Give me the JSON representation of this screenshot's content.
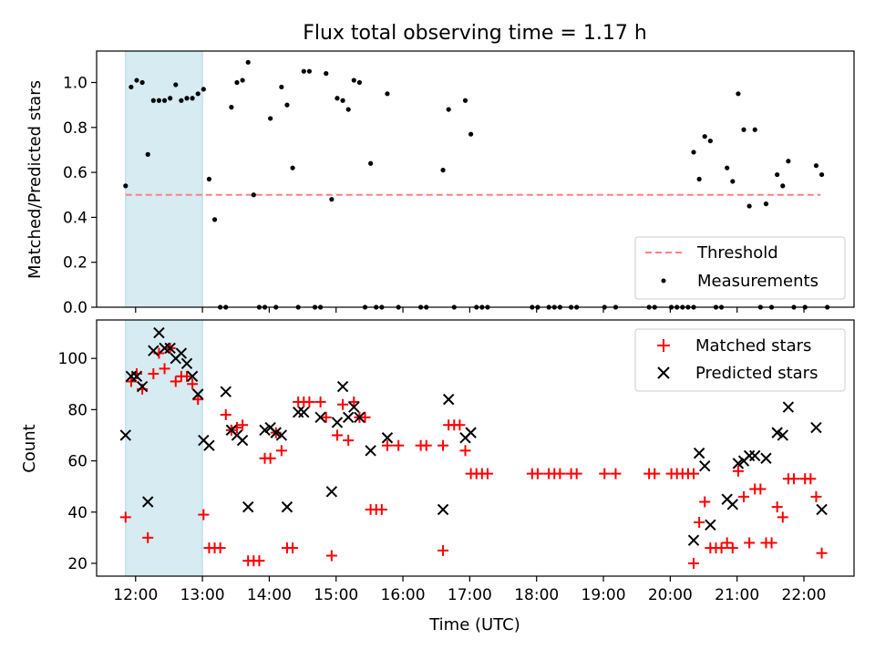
{
  "chart_data": [
    {
      "type": "scatter",
      "title": "Flux total observing time = 1.17 h",
      "ylabel": "Matched/Predicted stars",
      "ylim": [
        0,
        1.14
      ],
      "xlim": [
        "11:25",
        "22:45"
      ],
      "yticks": [
        "0.0",
        "0.2",
        "0.4",
        "0.6",
        "0.8",
        "1.0"
      ],
      "shaded_span": [
        "11:51",
        "13:00"
      ],
      "shade_color": "#add8e6",
      "threshold": {
        "name": "Threshold",
        "value": 0.5,
        "x_range": [
          "11:51",
          "22:15"
        ],
        "color": "#ff8080"
      },
      "legend": {
        "placement": "lower-right",
        "entries": [
          "Threshold",
          "Measurements"
        ]
      },
      "series": [
        {
          "name": "Measurements",
          "color": "#000000",
          "points": [
            [
              "11:51",
              0.54
            ],
            [
              "11:56",
              0.98
            ],
            [
              "12:01",
              1.01
            ],
            [
              "12:06",
              1.0
            ],
            [
              "12:11",
              0.68
            ],
            [
              "12:16",
              0.92
            ],
            [
              "12:21",
              0.92
            ],
            [
              "12:26",
              0.92
            ],
            [
              "12:31",
              0.93
            ],
            [
              "12:36",
              0.99
            ],
            [
              "12:41",
              0.92
            ],
            [
              "12:46",
              0.93
            ],
            [
              "12:51",
              0.93
            ],
            [
              "12:56",
              0.95
            ],
            [
              "13:01",
              0.97
            ],
            [
              "13:06",
              0.57
            ],
            [
              "13:11",
              0.39
            ],
            [
              "13:16",
              0.0
            ],
            [
              "13:21",
              0.0
            ],
            [
              "13:26",
              0.89
            ],
            [
              "13:31",
              1.0
            ],
            [
              "13:36",
              1.01
            ],
            [
              "13:41",
              1.09
            ],
            [
              "13:46",
              0.5
            ],
            [
              "13:51",
              0.0
            ],
            [
              "13:56",
              0.0
            ],
            [
              "14:01",
              0.84
            ],
            [
              "14:06",
              0.0
            ],
            [
              "14:11",
              0.98
            ],
            [
              "14:16",
              0.9
            ],
            [
              "14:21",
              0.62
            ],
            [
              "14:26",
              0.0
            ],
            [
              "14:31",
              1.05
            ],
            [
              "14:36",
              1.05
            ],
            [
              "14:41",
              0.0
            ],
            [
              "14:46",
              0.0
            ],
            [
              "14:51",
              1.04
            ],
            [
              "14:56",
              0.48
            ],
            [
              "15:01",
              0.93
            ],
            [
              "15:06",
              0.92
            ],
            [
              "15:11",
              0.88
            ],
            [
              "15:16",
              1.01
            ],
            [
              "15:21",
              1.0
            ],
            [
              "15:26",
              0.0
            ],
            [
              "15:31",
              0.64
            ],
            [
              "15:36",
              0.0
            ],
            [
              "15:41",
              0.0
            ],
            [
              "15:46",
              0.95
            ],
            [
              "15:56",
              0.0
            ],
            [
              "16:16",
              0.0
            ],
            [
              "16:21",
              0.0
            ],
            [
              "16:36",
              0.61
            ],
            [
              "16:41",
              0.88
            ],
            [
              "16:46",
              0.0
            ],
            [
              "16:56",
              0.92
            ],
            [
              "17:01",
              0.77
            ],
            [
              "17:06",
              0.0
            ],
            [
              "17:11",
              0.0
            ],
            [
              "17:16",
              0.0
            ],
            [
              "17:56",
              0.0
            ],
            [
              "18:01",
              0.0
            ],
            [
              "18:11",
              0.0
            ],
            [
              "18:16",
              0.0
            ],
            [
              "18:21",
              0.0
            ],
            [
              "18:31",
              0.0
            ],
            [
              "18:36",
              0.0
            ],
            [
              "19:01",
              0.0
            ],
            [
              "19:11",
              0.0
            ],
            [
              "19:41",
              0.0
            ],
            [
              "19:46",
              0.0
            ],
            [
              "20:01",
              0.0
            ],
            [
              "20:06",
              0.0
            ],
            [
              "20:11",
              0.0
            ],
            [
              "20:16",
              0.0
            ],
            [
              "20:21",
              0.0
            ],
            [
              "20:21",
              0.69
            ],
            [
              "20:26",
              0.57
            ],
            [
              "20:31",
              0.76
            ],
            [
              "20:36",
              0.74
            ],
            [
              "20:41",
              0.0
            ],
            [
              "20:46",
              0.0
            ],
            [
              "20:51",
              0.62
            ],
            [
              "20:56",
              0.56
            ],
            [
              "21:01",
              0.95
            ],
            [
              "21:06",
              0.79
            ],
            [
              "21:11",
              0.45
            ],
            [
              "21:16",
              0.79
            ],
            [
              "21:21",
              0.0
            ],
            [
              "21:26",
              0.46
            ],
            [
              "21:31",
              0.0
            ],
            [
              "21:36",
              0.59
            ],
            [
              "21:41",
              0.54
            ],
            [
              "21:46",
              0.65
            ],
            [
              "21:51",
              0.0
            ],
            [
              "22:01",
              0.0
            ],
            [
              "22:11",
              0.63
            ],
            [
              "22:16",
              0.59
            ],
            [
              "22:21",
              0.0
            ]
          ]
        }
      ]
    },
    {
      "type": "scatter",
      "xlabel": "Time (UTC)",
      "ylabel": "Count",
      "ylim": [
        15,
        115
      ],
      "xlim": [
        "11:25",
        "22:45"
      ],
      "xticks": [
        "12:00",
        "13:00",
        "14:00",
        "15:00",
        "16:00",
        "17:00",
        "18:00",
        "19:00",
        "20:00",
        "21:00",
        "22:00"
      ],
      "yticks": [
        "20",
        "40",
        "60",
        "80",
        "100"
      ],
      "shaded_span": [
        "11:51",
        "13:00"
      ],
      "legend": {
        "placement": "top-right",
        "entries": [
          "Matched stars",
          "Predicted stars"
        ]
      },
      "series": [
        {
          "name": "Matched stars",
          "marker": "+",
          "color": "#ff0000",
          "points": [
            [
              "11:51",
              38
            ],
            [
              "11:56",
              91
            ],
            [
              "12:01",
              94
            ],
            [
              "12:06",
              88
            ],
            [
              "12:11",
              30
            ],
            [
              "12:16",
              94
            ],
            [
              "12:21",
              102
            ],
            [
              "12:26",
              96
            ],
            [
              "12:31",
              104
            ],
            [
              "12:36",
              91
            ],
            [
              "12:41",
              93
            ],
            [
              "12:46",
              93
            ],
            [
              "12:51",
              90
            ],
            [
              "12:56",
              84
            ],
            [
              "13:01",
              39
            ],
            [
              "13:06",
              26
            ],
            [
              "13:11",
              26
            ],
            [
              "13:16",
              26
            ],
            [
              "13:21",
              78
            ],
            [
              "13:26",
              72
            ],
            [
              "13:31",
              73
            ],
            [
              "13:36",
              74
            ],
            [
              "13:41",
              21
            ],
            [
              "13:46",
              21
            ],
            [
              "13:51",
              21
            ],
            [
              "13:56",
              61
            ],
            [
              "14:01",
              61
            ],
            [
              "14:06",
              71
            ],
            [
              "14:11",
              64
            ],
            [
              "14:16",
              26
            ],
            [
              "14:21",
              26
            ],
            [
              "14:26",
              83
            ],
            [
              "14:31",
              83
            ],
            [
              "14:36",
              83
            ],
            [
              "14:46",
              83
            ],
            [
              "14:51",
              77
            ],
            [
              "14:56",
              23
            ],
            [
              "15:01",
              70
            ],
            [
              "15:06",
              82
            ],
            [
              "15:11",
              68
            ],
            [
              "15:16",
              83
            ],
            [
              "15:21",
              77
            ],
            [
              "15:26",
              77
            ],
            [
              "15:31",
              41
            ],
            [
              "15:36",
              41
            ],
            [
              "15:41",
              41
            ],
            [
              "15:46",
              66
            ],
            [
              "15:56",
              66
            ],
            [
              "16:16",
              66
            ],
            [
              "16:21",
              66
            ],
            [
              "16:36",
              66
            ],
            [
              "16:36",
              25
            ],
            [
              "16:41",
              74
            ],
            [
              "16:46",
              74
            ],
            [
              "16:51",
              74
            ],
            [
              "16:56",
              64
            ],
            [
              "17:01",
              55
            ],
            [
              "17:06",
              55
            ],
            [
              "17:11",
              55
            ],
            [
              "17:16",
              55
            ],
            [
              "17:56",
              55
            ],
            [
              "18:01",
              55
            ],
            [
              "18:11",
              55
            ],
            [
              "18:16",
              55
            ],
            [
              "18:21",
              55
            ],
            [
              "18:31",
              55
            ],
            [
              "18:36",
              55
            ],
            [
              "19:01",
              55
            ],
            [
              "19:11",
              55
            ],
            [
              "19:41",
              55
            ],
            [
              "19:46",
              55
            ],
            [
              "20:01",
              55
            ],
            [
              "20:06",
              55
            ],
            [
              "20:11",
              55
            ],
            [
              "20:16",
              55
            ],
            [
              "20:21",
              55
            ],
            [
              "20:21",
              20
            ],
            [
              "20:26",
              36
            ],
            [
              "20:31",
              44
            ],
            [
              "20:36",
              26
            ],
            [
              "20:41",
              26
            ],
            [
              "20:46",
              26
            ],
            [
              "20:51",
              28
            ],
            [
              "20:56",
              26
            ],
            [
              "21:01",
              56
            ],
            [
              "21:06",
              46
            ],
            [
              "21:11",
              28
            ],
            [
              "21:16",
              49
            ],
            [
              "21:21",
              49
            ],
            [
              "21:26",
              28
            ],
            [
              "21:31",
              28
            ],
            [
              "21:36",
              42
            ],
            [
              "21:41",
              38
            ],
            [
              "21:46",
              53
            ],
            [
              "21:51",
              53
            ],
            [
              "22:01",
              53
            ],
            [
              "22:06",
              53
            ],
            [
              "22:11",
              46
            ],
            [
              "22:16",
              24
            ]
          ]
        },
        {
          "name": "Predicted stars",
          "marker": "x",
          "color": "#000000",
          "points": [
            [
              "11:51",
              70
            ],
            [
              "11:56",
              93
            ],
            [
              "12:01",
              93
            ],
            [
              "12:06",
              89
            ],
            [
              "12:11",
              44
            ],
            [
              "12:16",
              103
            ],
            [
              "12:21",
              110
            ],
            [
              "12:26",
              104
            ],
            [
              "12:31",
              104
            ],
            [
              "12:36",
              100
            ],
            [
              "12:41",
              102
            ],
            [
              "12:46",
              98
            ],
            [
              "12:51",
              93
            ],
            [
              "12:56",
              86
            ],
            [
              "13:01",
              68
            ],
            [
              "13:06",
              66
            ],
            [
              "13:21",
              87
            ],
            [
              "13:26",
              72
            ],
            [
              "13:31",
              70
            ],
            [
              "13:36",
              68
            ],
            [
              "13:41",
              42
            ],
            [
              "13:56",
              72
            ],
            [
              "14:01",
              73
            ],
            [
              "14:06",
              71
            ],
            [
              "14:11",
              70
            ],
            [
              "14:16",
              42
            ],
            [
              "14:26",
              79
            ],
            [
              "14:31",
              79
            ],
            [
              "14:46",
              77
            ],
            [
              "14:56",
              48
            ],
            [
              "15:01",
              75
            ],
            [
              "15:06",
              89
            ],
            [
              "15:11",
              77
            ],
            [
              "15:16",
              81
            ],
            [
              "15:21",
              77
            ],
            [
              "15:31",
              64
            ],
            [
              "15:46",
              69
            ],
            [
              "16:36",
              41
            ],
            [
              "16:41",
              84
            ],
            [
              "16:56",
              69
            ],
            [
              "17:01",
              71
            ],
            [
              "20:21",
              29
            ],
            [
              "20:26",
              63
            ],
            [
              "20:31",
              58
            ],
            [
              "20:36",
              35
            ],
            [
              "20:51",
              45
            ],
            [
              "20:56",
              43
            ],
            [
              "21:01",
              59
            ],
            [
              "21:06",
              60
            ],
            [
              "21:11",
              62
            ],
            [
              "21:16",
              62
            ],
            [
              "21:26",
              61
            ],
            [
              "21:36",
              71
            ],
            [
              "21:41",
              70
            ],
            [
              "21:46",
              81
            ],
            [
              "22:11",
              73
            ],
            [
              "22:16",
              41
            ]
          ]
        }
      ]
    }
  ]
}
